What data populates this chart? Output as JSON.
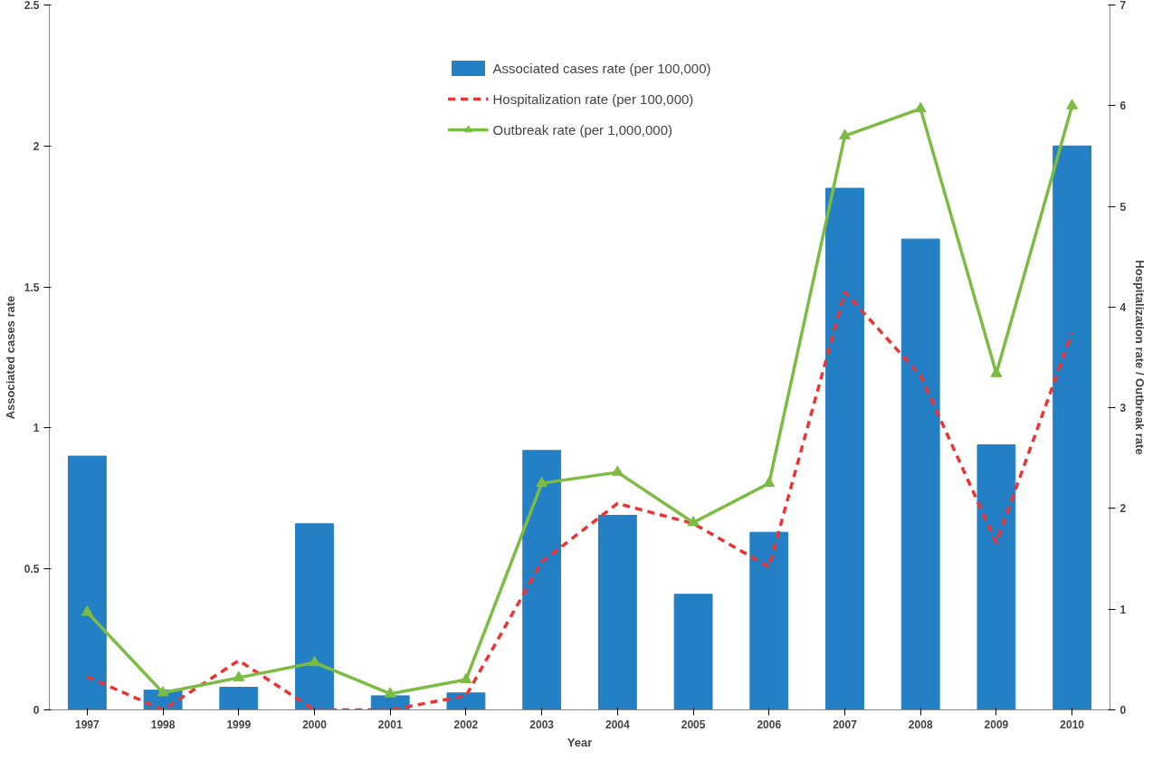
{
  "chart_data": {
    "type": "bar",
    "xlabel": "Year",
    "ylabel": "Associated cases rate",
    "y2label": "Hospitalization rate / Outbreak rate",
    "categories": [
      "1997",
      "1998",
      "1999",
      "2000",
      "2001",
      "2002",
      "2003",
      "2004",
      "2005",
      "2006",
      "2007",
      "2008",
      "2009",
      "2010"
    ],
    "series": [
      {
        "name": "Associated cases rate (per 100,000)",
        "color": "#2480c4",
        "values": [
          0.9,
          0.07,
          0.08,
          0.66,
          0.05,
          0.06,
          0.92,
          0.69,
          0.41,
          0.63,
          1.85,
          1.67,
          0.94,
          2.0
        ]
      },
      {
        "name": "Hospitalization rate (per 100,000)",
        "type": "line",
        "axis": "y2",
        "color": "#ee3333",
        "line_style": "dashed",
        "marker": "none",
        "values": [
          0.33,
          0,
          0.49,
          0,
          0,
          0.14,
          1.47,
          2.05,
          1.85,
          1.42,
          4.15,
          3.32,
          1.66,
          3.75
        ]
      },
      {
        "name": "Outbreak rate (per 1,000,000)",
        "type": "line",
        "axis": "y2",
        "color": "#7cbc42",
        "line_style": "solid",
        "marker": "triangle",
        "values": [
          0.97,
          0.17,
          0.32,
          0.47,
          0.16,
          0.3,
          2.25,
          2.36,
          1.86,
          2.25,
          5.7,
          5.97,
          3.34,
          6.0
        ]
      }
    ],
    "ylim": [
      0,
      2.5
    ],
    "yticks": [
      0,
      0.5,
      1,
      1.5,
      2,
      2.5
    ],
    "y2lim": [
      0,
      7
    ],
    "y2ticks": [
      0,
      1,
      2,
      3,
      4,
      5,
      6,
      7
    ],
    "grid": false,
    "legend": "top"
  }
}
